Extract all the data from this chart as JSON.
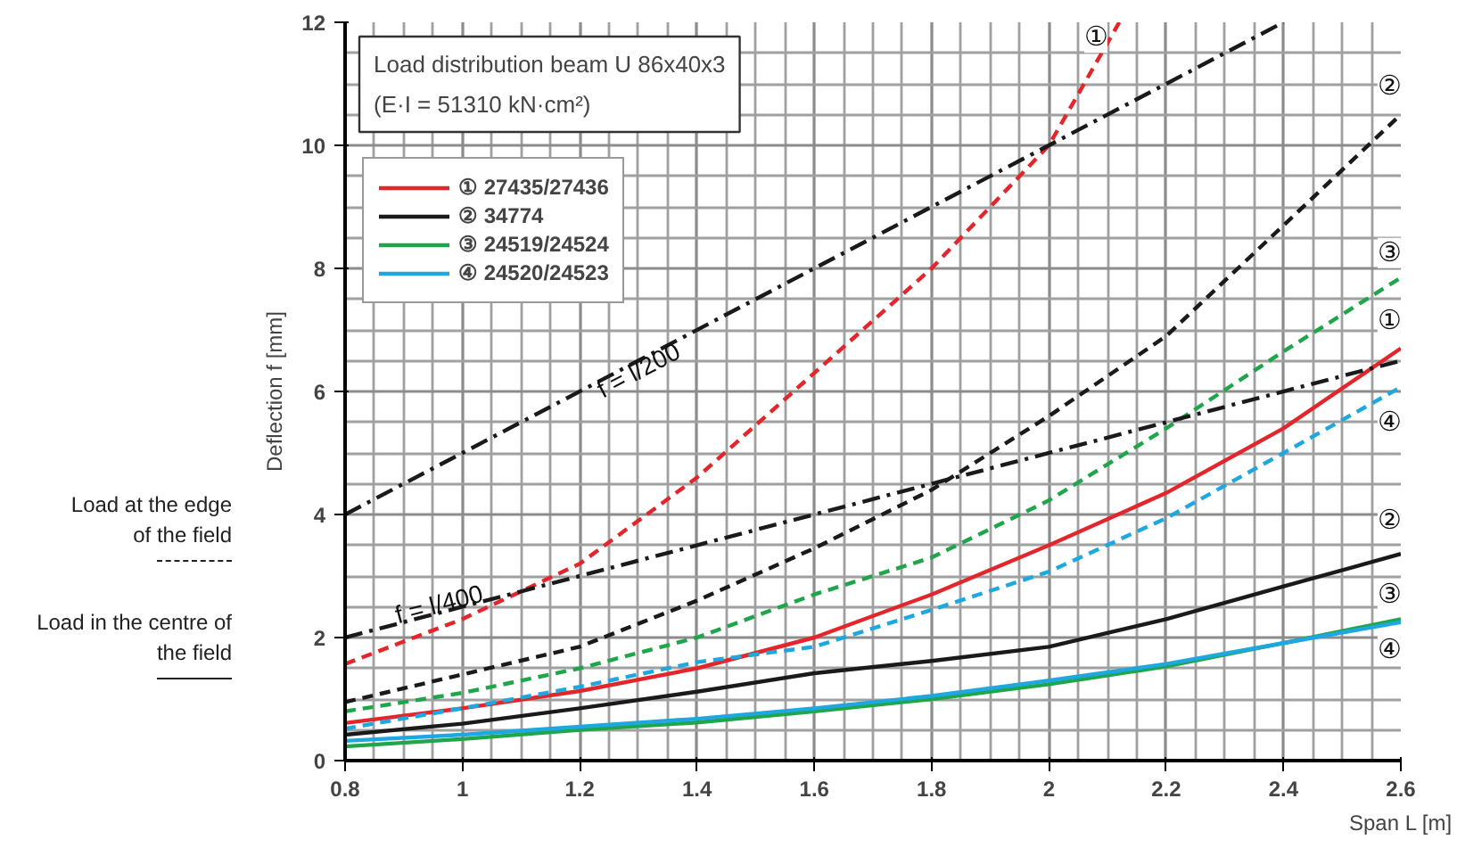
{
  "chart_data": {
    "type": "line",
    "title": "Load distribution beam U 86x40x3",
    "subtitle": "(E·I = 51310 kN·cm²)",
    "xlabel": "Span L [m]",
    "ylabel": "Deflection f [mm]",
    "x": [
      0.8,
      1.0,
      1.2,
      1.4,
      1.6,
      1.8,
      2.0,
      2.2,
      2.4,
      2.6
    ],
    "series": [
      {
        "name": "① 27435/27436",
        "color": "#e3262b",
        "line_style": "solid",
        "values": [
          0.61,
          0.85,
          1.13,
          1.5,
          2.0,
          2.7,
          3.5,
          4.35,
          5.4,
          6.7
        ]
      },
      {
        "name": "② 34774",
        "color": "#1a1a1a",
        "line_style": "solid",
        "values": [
          0.42,
          0.6,
          0.85,
          1.12,
          1.42,
          1.62,
          1.85,
          2.3,
          2.83,
          3.36
        ]
      },
      {
        "name": "③ 24519/24524",
        "color": "#1fa64a",
        "line_style": "solid",
        "values": [
          0.23,
          0.35,
          0.5,
          0.62,
          0.8,
          1.0,
          1.24,
          1.53,
          1.91,
          2.3
        ]
      },
      {
        "name": "④ 24520/24523",
        "color": "#1fa8e0",
        "line_style": "solid",
        "values": [
          0.32,
          0.42,
          0.55,
          0.68,
          0.85,
          1.05,
          1.3,
          1.57,
          1.91,
          2.25
        ]
      },
      {
        "color": "#e3262b",
        "line_style": "dashed",
        "x": [
          0.8,
          1.0,
          1.2,
          1.4,
          1.6,
          1.8,
          2.0,
          2.12
        ],
        "values": [
          1.57,
          2.3,
          3.2,
          4.6,
          6.3,
          8.0,
          10.0,
          12.0
        ]
      },
      {
        "color": "#1a1a1a",
        "line_style": "dashed",
        "values": [
          0.95,
          1.4,
          1.85,
          2.6,
          3.45,
          4.4,
          5.6,
          6.9,
          8.7,
          10.5
        ]
      },
      {
        "color": "#1fa64a",
        "line_style": "dashed",
        "values": [
          0.8,
          1.1,
          1.5,
          2.0,
          2.7,
          3.3,
          4.23,
          5.4,
          6.65,
          7.85
        ]
      },
      {
        "color": "#1fa8e0",
        "line_style": "dashed",
        "values": [
          0.52,
          0.85,
          1.2,
          1.6,
          1.85,
          2.45,
          3.07,
          3.94,
          5.0,
          6.07
        ]
      },
      {
        "color": "#1a1a1a",
        "line_style": "dashdot",
        "x": [
          0.8,
          2.4
        ],
        "values": [
          4,
          12
        ]
      },
      {
        "color": "#1a1a1a",
        "line_style": "dashdot",
        "x": [
          0.8,
          2.6
        ],
        "values": [
          2,
          6.5
        ]
      }
    ],
    "annotations": [
      "Load at the edge\nof the field",
      "Load in the centre of\nthe field",
      {
        "text": "f = l/200",
        "x": 1.3,
        "y": 6.35
      },
      {
        "text": "f = l/400",
        "x": 0.96,
        "y": 2.55
      },
      {
        "text": "①",
        "x": 2.08,
        "y": 11.75
      },
      {
        "text": "②",
        "x": 2.58,
        "y": 10.95
      },
      {
        "text": "③",
        "x": 2.58,
        "y": 8.25
      },
      {
        "text": "①",
        "x": 2.58,
        "y": 7.15
      },
      {
        "text": "④",
        "x": 2.58,
        "y": 5.5
      },
      {
        "text": "②",
        "x": 2.58,
        "y": 3.9
      },
      {
        "text": "③",
        "x": 2.58,
        "y": 2.7
      },
      {
        "text": "④",
        "x": 2.58,
        "y": 1.8
      }
    ],
    "xlim": [
      0.8,
      2.6
    ],
    "ylim": [
      0,
      12
    ],
    "xticks": [
      0.8,
      1,
      1.2,
      1.4,
      1.6,
      1.8,
      2,
      2.2,
      2.4,
      2.6
    ],
    "yticks": [
      0,
      2,
      4,
      6,
      8,
      10,
      12
    ],
    "grid": true,
    "legend": "top left"
  }
}
